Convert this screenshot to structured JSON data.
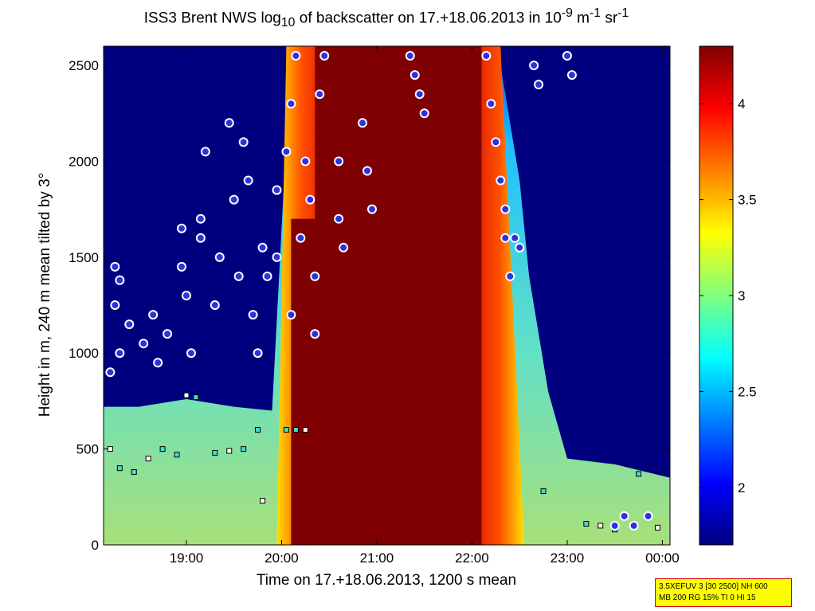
{
  "title": {
    "prefix": "ISS3 Brent NWS log",
    "sub": "10",
    "middle": " of backscatter on 17.+18.06.2013 in 10",
    "sup1": "-9",
    "m": " m",
    "sup2": "-1",
    "sr": " sr",
    "sup3": "-1"
  },
  "xlabel": "Time on 17.+18.06.2013, 1200 s mean",
  "ylabel": "Height in m, 240 m mean tilted by 3°",
  "infobox": {
    "line1": "3.5XEFUV 3 [30 2500] NH 600",
    "line2": "MB 200 RG 15% TI 0 HI 15"
  },
  "colors": {
    "background_low": "#00007f",
    "colormap": [
      "#00007f",
      "#0000ff",
      "#00ffff",
      "#ffff00",
      "#ff0000",
      "#7f0000"
    ],
    "marker_cloud_fill": "#3030e0",
    "marker_cloud_edge": "#ffffff",
    "marker_cloud_ring": "#d00060"
  },
  "chart_data": {
    "type": "heatmap",
    "x_unit": "hours after 00:00 on 17.06.2013",
    "xlim": [
      18.13,
      24.08
    ],
    "ylim": [
      0,
      2600
    ],
    "x_ticks": [
      {
        "value": 19,
        "label": "19:00"
      },
      {
        "value": 20,
        "label": "20:00"
      },
      {
        "value": 21,
        "label": "21:00"
      },
      {
        "value": 22,
        "label": "22:00"
      },
      {
        "value": 23,
        "label": "23:00"
      },
      {
        "value": 24,
        "label": "00:00"
      }
    ],
    "y_ticks": [
      0,
      500,
      1000,
      1500,
      2000,
      2500
    ],
    "colorbar": {
      "clim": [
        1.7,
        4.3
      ],
      "ticks": [
        2,
        2.5,
        3,
        3.5,
        4
      ]
    },
    "layer_top_m": [
      [
        18.13,
        720
      ],
      [
        18.5,
        720
      ],
      [
        19.0,
        760
      ],
      [
        19.5,
        720
      ],
      [
        19.9,
        700
      ],
      [
        20.1,
        2600
      ],
      [
        22.1,
        2600
      ],
      [
        22.3,
        2500
      ],
      [
        22.5,
        1900
      ],
      [
        22.6,
        1400
      ],
      [
        22.8,
        800
      ],
      [
        23.0,
        450
      ],
      [
        23.5,
        420
      ],
      [
        24.08,
        350
      ]
    ],
    "core_intervals": [
      {
        "x0": 20.1,
        "x1": 20.35,
        "top": 1700,
        "value": 4.3
      },
      {
        "x0": 20.35,
        "x1": 22.1,
        "top": 2600,
        "value": 4.3
      }
    ],
    "cloud_base_markers": [
      [
        18.25,
        1450
      ],
      [
        18.3,
        1380
      ],
      [
        18.25,
        1250
      ],
      [
        18.3,
        1000
      ],
      [
        18.2,
        900
      ],
      [
        18.4,
        1150
      ],
      [
        18.55,
        1050
      ],
      [
        18.65,
        1200
      ],
      [
        18.7,
        950
      ],
      [
        18.8,
        1100
      ],
      [
        18.95,
        1650
      ],
      [
        18.95,
        1450
      ],
      [
        19.0,
        1300
      ],
      [
        19.05,
        1000
      ],
      [
        19.15,
        1700
      ],
      [
        19.15,
        1600
      ],
      [
        19.2,
        2050
      ],
      [
        19.3,
        1250
      ],
      [
        19.35,
        1500
      ],
      [
        19.45,
        2200
      ],
      [
        19.5,
        1800
      ],
      [
        19.55,
        1400
      ],
      [
        19.6,
        2100
      ],
      [
        19.65,
        1900
      ],
      [
        19.7,
        1200
      ],
      [
        19.75,
        1000
      ],
      [
        19.8,
        1550
      ],
      [
        19.85,
        1400
      ],
      [
        19.95,
        1850
      ],
      [
        19.95,
        1500
      ],
      [
        20.05,
        2050
      ],
      [
        20.1,
        2300
      ],
      [
        20.1,
        1200
      ],
      [
        20.15,
        2550
      ],
      [
        20.2,
        1600
      ],
      [
        20.25,
        2000
      ],
      [
        20.3,
        1800
      ],
      [
        20.35,
        1400
      ],
      [
        20.35,
        1100
      ],
      [
        20.4,
        2350
      ],
      [
        20.45,
        2550
      ],
      [
        20.6,
        2000
      ],
      [
        20.6,
        1700
      ],
      [
        20.65,
        1550
      ],
      [
        20.85,
        2200
      ],
      [
        20.9,
        1950
      ],
      [
        20.95,
        1750
      ],
      [
        21.35,
        2550
      ],
      [
        21.4,
        2450
      ],
      [
        21.45,
        2350
      ],
      [
        21.5,
        2250
      ],
      [
        22.15,
        2550
      ],
      [
        22.2,
        2300
      ],
      [
        22.25,
        2100
      ],
      [
        22.3,
        1900
      ],
      [
        22.35,
        1750
      ],
      [
        22.35,
        1600
      ],
      [
        22.4,
        1400
      ],
      [
        22.45,
        1600
      ],
      [
        22.5,
        1550
      ],
      [
        22.65,
        2500
      ],
      [
        22.7,
        2400
      ],
      [
        23.0,
        2550
      ],
      [
        23.05,
        2450
      ],
      [
        23.85,
        150
      ],
      [
        23.7,
        100
      ],
      [
        23.6,
        150
      ],
      [
        23.5,
        100
      ]
    ],
    "aerosol_markers": [
      [
        18.2,
        500
      ],
      [
        18.3,
        400
      ],
      [
        18.45,
        380
      ],
      [
        18.6,
        450
      ],
      [
        18.75,
        500
      ],
      [
        18.9,
        470
      ],
      [
        19.0,
        780
      ],
      [
        19.1,
        770
      ],
      [
        19.3,
        480
      ],
      [
        19.45,
        490
      ],
      [
        19.6,
        500
      ],
      [
        19.75,
        600
      ],
      [
        19.8,
        230
      ],
      [
        20.05,
        600
      ],
      [
        20.15,
        600
      ],
      [
        20.25,
        600
      ],
      [
        22.75,
        280
      ],
      [
        23.2,
        110
      ],
      [
        23.35,
        100
      ],
      [
        23.5,
        80
      ],
      [
        23.75,
        370
      ],
      [
        23.95,
        90
      ]
    ]
  }
}
